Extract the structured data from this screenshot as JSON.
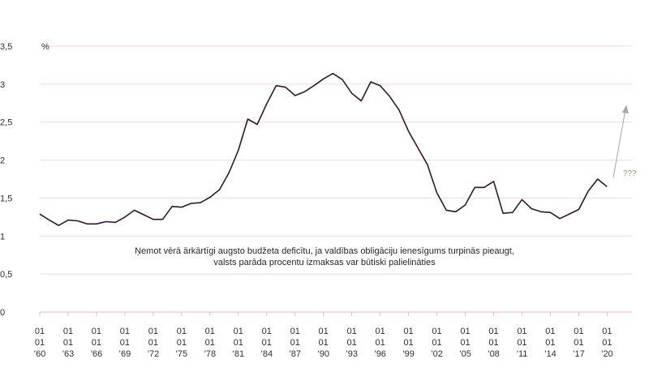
{
  "chart_data": {
    "type": "line",
    "ylabel": "%",
    "ylim": [
      0,
      3.5
    ],
    "yticks": [
      "0",
      "0,5",
      "1",
      "1,5",
      "2",
      "2,5",
      "3",
      "3,5"
    ],
    "ytick_values": [
      0,
      0.5,
      1,
      1.5,
      2,
      2.5,
      3,
      3.5
    ],
    "xlim": [
      1960,
      2021
    ],
    "xticks": [
      {
        "year": 1960,
        "label": [
          "01",
          "01",
          "’60"
        ]
      },
      {
        "year": 1963,
        "label": [
          "01",
          "01",
          "’63"
        ]
      },
      {
        "year": 1966,
        "label": [
          "01",
          "01",
          "’66"
        ]
      },
      {
        "year": 1969,
        "label": [
          "01",
          "01",
          "’69"
        ]
      },
      {
        "year": 1972,
        "label": [
          "01",
          "01",
          "’72"
        ]
      },
      {
        "year": 1975,
        "label": [
          "01",
          "01",
          "’75"
        ]
      },
      {
        "year": 1978,
        "label": [
          "01",
          "01",
          "’78"
        ]
      },
      {
        "year": 1981,
        "label": [
          "01",
          "01",
          "’81"
        ]
      },
      {
        "year": 1984,
        "label": [
          "01",
          "01",
          "’84"
        ]
      },
      {
        "year": 1987,
        "label": [
          "01",
          "01",
          "’87"
        ]
      },
      {
        "year": 1990,
        "label": [
          "01",
          "01",
          "’90"
        ]
      },
      {
        "year": 1993,
        "label": [
          "01",
          "01",
          "’93"
        ]
      },
      {
        "year": 1996,
        "label": [
          "01",
          "01",
          "’96"
        ]
      },
      {
        "year": 1999,
        "label": [
          "01",
          "01",
          "’99"
        ]
      },
      {
        "year": 2002,
        "label": [
          "01",
          "01",
          "’02"
        ]
      },
      {
        "year": 2005,
        "label": [
          "01",
          "01",
          "’05"
        ]
      },
      {
        "year": 2008,
        "label": [
          "01",
          "01",
          "’08"
        ]
      },
      {
        "year": 2011,
        "label": [
          "01",
          "01",
          "’11"
        ]
      },
      {
        "year": 2014,
        "label": [
          "01",
          "01",
          "’14"
        ]
      },
      {
        "year": 2017,
        "label": [
          "01",
          "01",
          "’17"
        ]
      },
      {
        "year": 2020,
        "label": [
          "01",
          "01",
          "’20"
        ]
      }
    ],
    "grid": true,
    "series": [
      {
        "color": "#2e1a2b",
        "x": [
          1960,
          1961,
          1962,
          1963,
          1964,
          1965,
          1966,
          1967,
          1968,
          1969,
          1970,
          1971,
          1972,
          1973,
          1974,
          1975,
          1976,
          1977,
          1978,
          1979,
          1980,
          1981,
          1982,
          1983,
          1984,
          1985,
          1986,
          1987,
          1988,
          1989,
          1990,
          1991,
          1992,
          1993,
          1994,
          1995,
          1996,
          1997,
          1998,
          1999,
          2000,
          2001,
          2002,
          2003,
          2004,
          2005,
          2006,
          2007,
          2008,
          2009,
          2010,
          2011,
          2012,
          2013,
          2014,
          2015,
          2016,
          2017,
          2018,
          2019,
          2020
        ],
        "y": [
          1.29,
          1.21,
          1.14,
          1.21,
          1.2,
          1.16,
          1.16,
          1.19,
          1.18,
          1.25,
          1.34,
          1.28,
          1.22,
          1.22,
          1.39,
          1.38,
          1.43,
          1.44,
          1.51,
          1.61,
          1.83,
          2.13,
          2.54,
          2.47,
          2.74,
          2.98,
          2.96,
          2.85,
          2.9,
          2.98,
          3.07,
          3.14,
          3.06,
          2.88,
          2.78,
          3.03,
          2.98,
          2.84,
          2.66,
          2.38,
          2.16,
          1.94,
          1.57,
          1.34,
          1.32,
          1.41,
          1.64,
          1.64,
          1.72,
          1.3,
          1.31,
          1.48,
          1.36,
          1.32,
          1.31,
          1.23,
          1.29,
          1.35,
          1.59,
          1.75,
          1.65
        ]
      }
    ],
    "annotation": {
      "line1": "Ņemot vērā ārkārtīgi augsto budžeta deficītu, ja valdības obligāciju ienesīgums turpinās pieaugt,",
      "line2": "valsts parāda procentu izmaksas var būtiski palielināties"
    },
    "arrow_label": "???",
    "colors": {
      "line": "#2e1a2b",
      "grid": "#efd9df",
      "baseline": "#e8b8c2",
      "arrow": "#a8a8a8",
      "arrow_label": "#7aa36a"
    }
  }
}
